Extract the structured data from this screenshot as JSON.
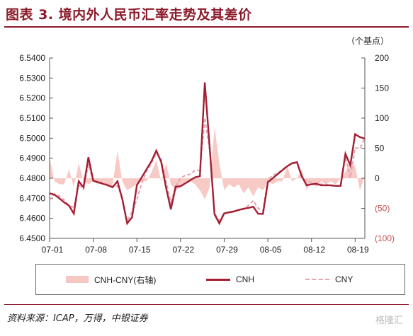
{
  "header": {
    "title": "图表 3. 境内外人民币汇率走势及其差价"
  },
  "footer": {
    "source": "资料来源：ICAP，万得，中银证券",
    "watermark": "格隆汇"
  },
  "chart_data": {
    "type": "line",
    "x_ticks": [
      "07-01",
      "07-08",
      "07-15",
      "07-22",
      "07-29",
      "08-05",
      "08-12",
      "08-19"
    ],
    "y_left": {
      "ticks": [
        "6.5400",
        "6.5300",
        "6.5200",
        "6.5100",
        "6.5000",
        "6.4900",
        "6.4800",
        "6.4700",
        "6.4600",
        "6.4500"
      ],
      "ylim": [
        6.45,
        6.54
      ]
    },
    "y_right": {
      "unit_label": "（个基点）",
      "ticks": [
        "200",
        "150",
        "100",
        "50",
        "0",
        "(50)",
        "(100)"
      ],
      "ylim": [
        -100,
        200
      ]
    },
    "series": [
      {
        "name": "CNH-CNY(右轴)",
        "style": "area",
        "color": "#f7c7c3",
        "axis": "right",
        "values": [
          35,
          -5,
          -10,
          -10,
          15,
          -15,
          25,
          -5,
          -10,
          -5,
          -10,
          -5,
          -15,
          -10,
          45,
          -5,
          -20,
          -15,
          -10,
          -5,
          -5,
          10,
          30,
          -5,
          25,
          -10,
          -20,
          -15,
          -10,
          -5,
          -10,
          -20,
          -35,
          -15,
          85,
          25,
          -20,
          -10,
          -15,
          -10,
          -25,
          -15,
          -30,
          -15,
          -20,
          -5,
          -10,
          -5,
          -5,
          20,
          -5,
          0,
          15,
          -20,
          -5,
          -15,
          -5,
          -10,
          -5,
          -10,
          0,
          10,
          30,
          20,
          -20,
          5
        ]
      },
      {
        "name": "CNH",
        "style": "solid",
        "color": "#a31f34",
        "axis": "left",
        "values": [
          6.4725,
          6.4718,
          6.47,
          6.468,
          6.4663,
          6.4624,
          6.4785,
          6.4755,
          6.4905,
          6.4788,
          6.478,
          6.4772,
          6.4765,
          6.4755,
          6.4785,
          6.4695,
          6.4575,
          6.4605,
          6.4765,
          6.4805,
          6.4845,
          6.4885,
          6.4938,
          6.4882,
          6.4755,
          6.4645,
          6.4758,
          6.476,
          6.4775,
          6.479,
          6.4805,
          6.481,
          6.5278,
          6.4958,
          6.462,
          6.4575,
          6.4625,
          6.463,
          6.4635,
          6.4642,
          6.4648,
          6.4652,
          6.4658,
          6.4623,
          6.4622,
          6.478,
          6.48,
          6.482,
          6.484,
          6.486,
          6.4875,
          6.488,
          6.481,
          6.4765,
          6.477,
          6.4772,
          6.4765,
          6.4765,
          6.4765,
          6.4762,
          6.4762,
          6.4922,
          6.4865,
          6.502,
          6.5005,
          6.4998
        ]
      },
      {
        "name": "CNY",
        "style": "dashed",
        "color": "#e6a3ad",
        "axis": "left",
        "values": [
          6.469,
          6.4722,
          6.4712,
          6.4692,
          6.4665,
          6.4655,
          6.477,
          6.4745,
          6.487,
          6.4782,
          6.4785,
          6.4778,
          6.4768,
          6.476,
          6.4762,
          6.4702,
          6.4585,
          6.4632,
          6.4695,
          6.4775,
          6.4835,
          6.4875,
          6.4925,
          6.4895,
          6.4785,
          6.468,
          6.4758,
          6.48,
          6.4815,
          6.482,
          6.484,
          6.484,
          6.5102,
          6.494,
          6.4625,
          6.459,
          6.4625,
          6.4628,
          6.4632,
          6.464,
          6.4645,
          6.4665,
          6.4688,
          6.465,
          6.4638,
          6.4792,
          6.4815,
          6.4825,
          6.4845,
          6.486,
          6.4872,
          6.4878,
          6.4802,
          6.4785,
          6.478,
          6.4775,
          6.477,
          6.477,
          6.4762,
          6.4762,
          6.4762,
          6.4905,
          6.4802,
          6.4952,
          6.4948,
          6.5002
        ]
      }
    ]
  }
}
